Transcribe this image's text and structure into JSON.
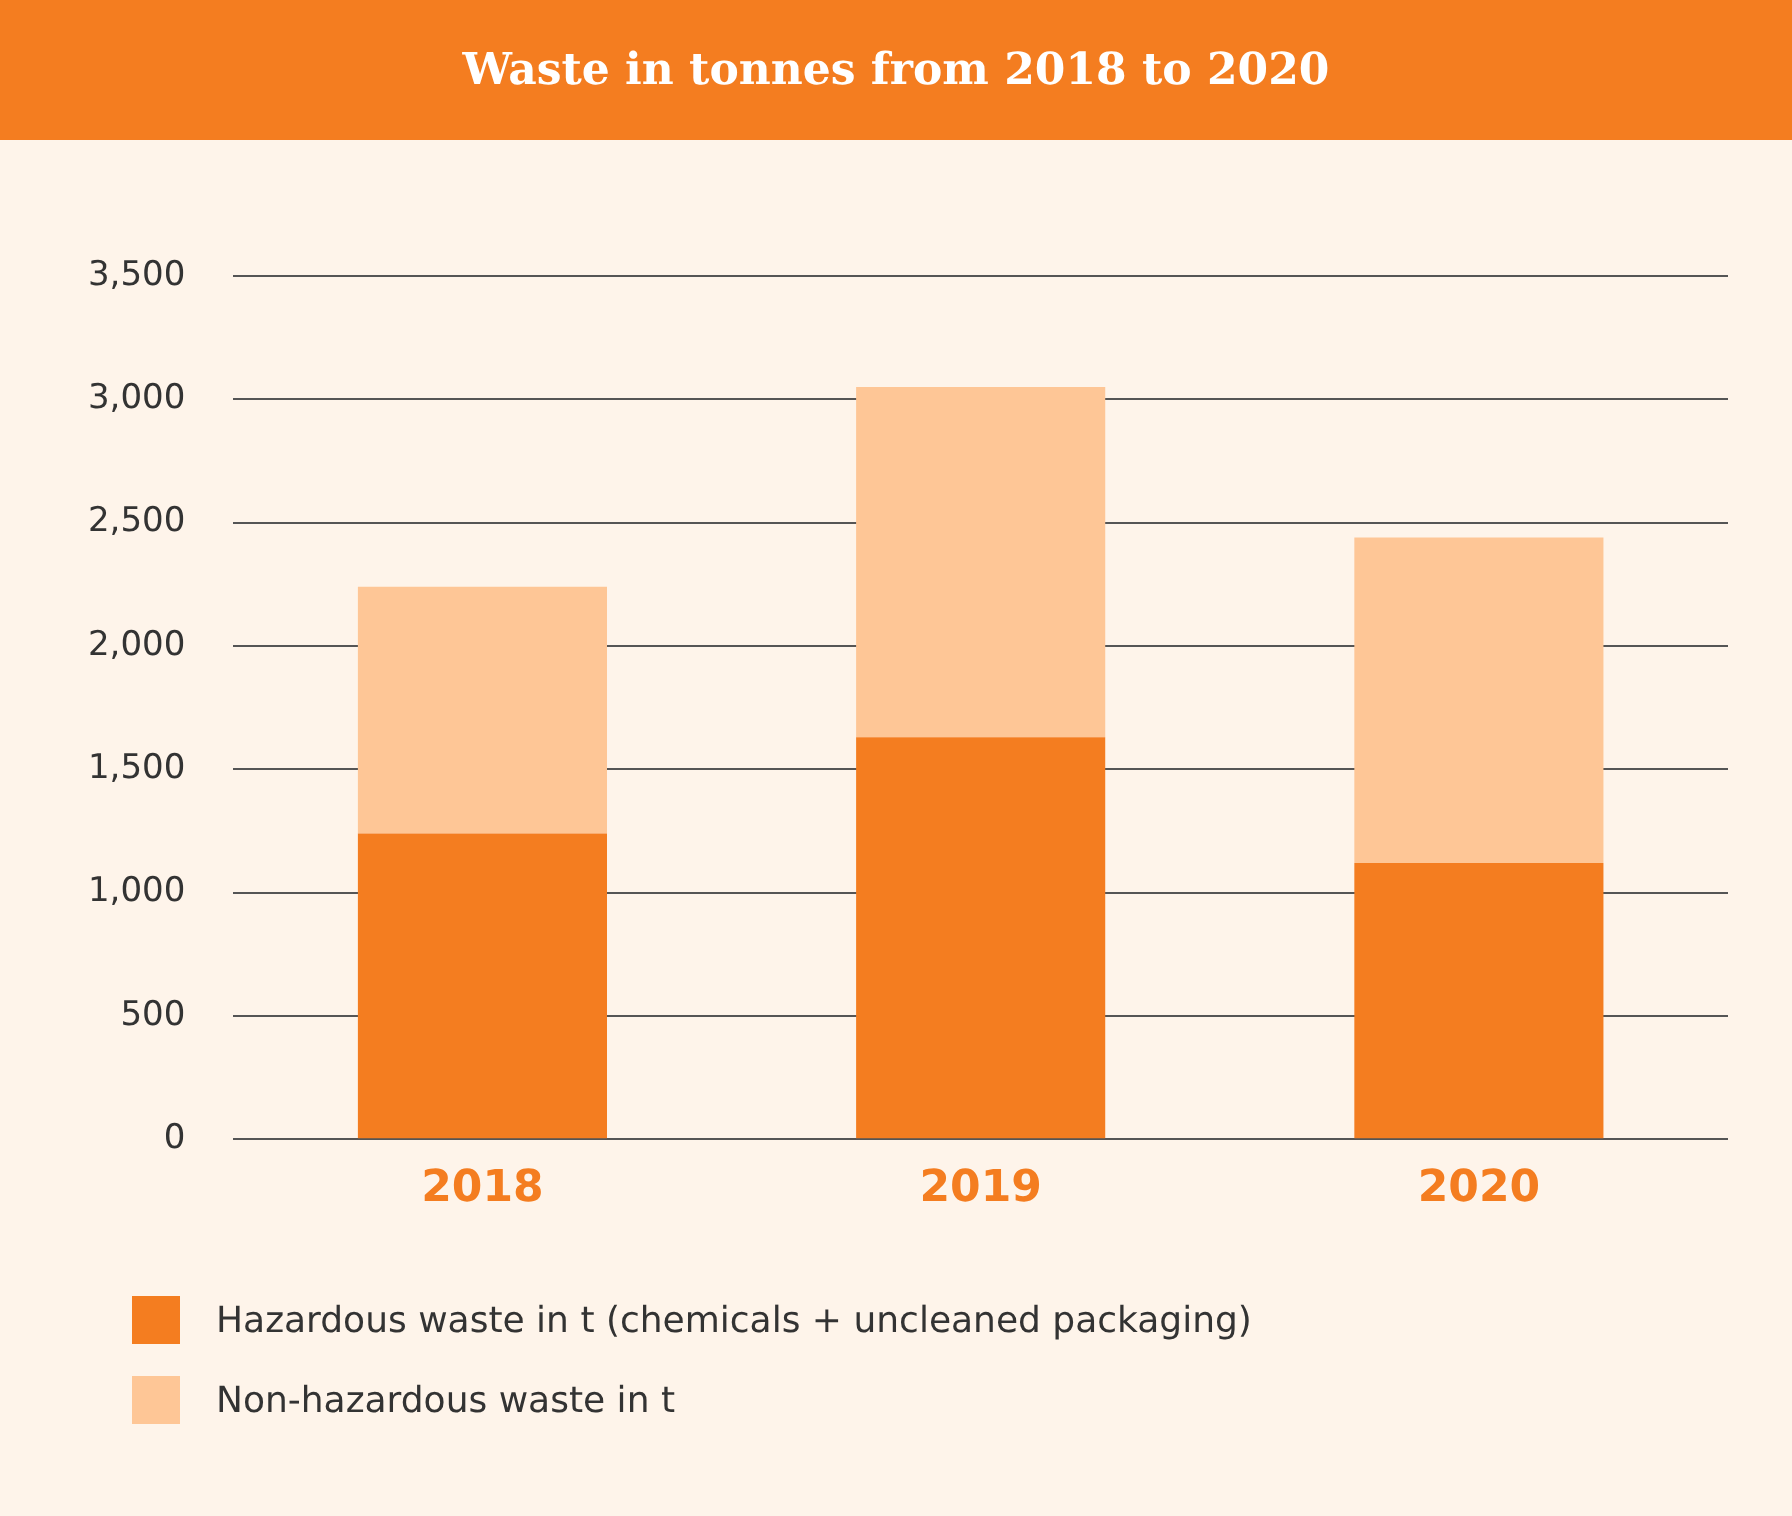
{
  "chart_data": {
    "type": "bar",
    "title": "Waste in tonnes from 2018 to 2020",
    "categories": [
      "2018",
      "2019",
      "2020"
    ],
    "stacked": true,
    "series": [
      {
        "name": "Hazardous waste in t (chemicals + uncleaned packaging)",
        "color": "#f47d20",
        "values": [
          1240,
          1630,
          1120
        ]
      },
      {
        "name": "Non-hazardous waste in t",
        "color": "#fec696",
        "values": [
          1000,
          1420,
          1320
        ]
      }
    ],
    "ylim": [
      0,
      3500
    ],
    "yticks": [
      0,
      500,
      {
        "value": 1000,
        "label": "1,000"
      },
      {
        "value": 1500,
        "label": "1,500"
      },
      {
        "value": 2000,
        "label": "2,000"
      },
      {
        "value": 2500,
        "label": "2,500"
      },
      {
        "value": 3000,
        "label": "3,000"
      },
      {
        "value": 3500,
        "label": "3,500"
      }
    ],
    "grid": "y",
    "legend": "bottom left"
  }
}
